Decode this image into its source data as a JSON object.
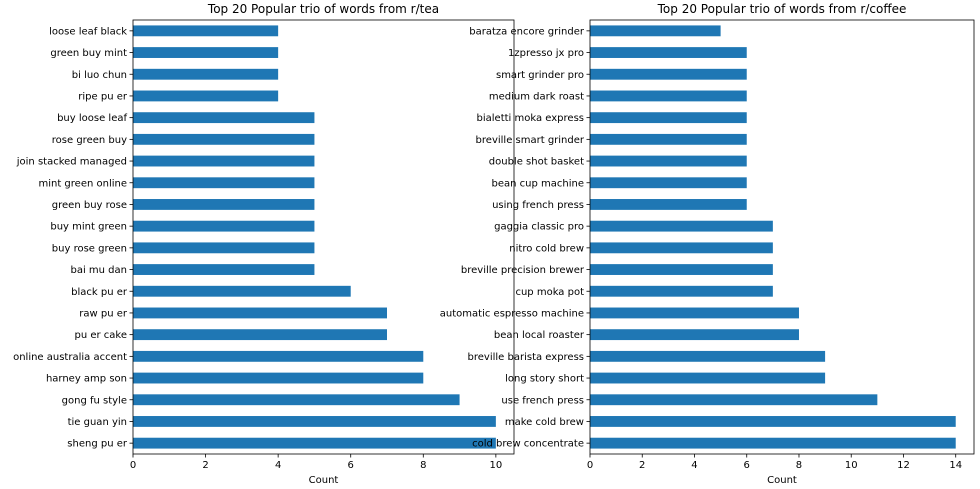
{
  "chart_data": [
    {
      "type": "bar",
      "orientation": "horizontal",
      "title": "Top 20 Popular trio of words from r/tea",
      "xlabel": "Count",
      "ylabel": "",
      "xlim": [
        0,
        10.5
      ],
      "xticks": [
        0,
        2,
        4,
        6,
        8,
        10
      ],
      "categories": [
        "loose leaf black",
        "green buy mint",
        "bi luo chun",
        "ripe pu er",
        "buy loose leaf",
        "rose green buy",
        "join stacked managed",
        "mint green online",
        "green buy rose",
        "buy mint green",
        "buy rose green",
        "bai mu dan",
        "black pu er",
        "raw pu er",
        "pu er cake",
        "online australia accent",
        "harney amp son",
        "gong fu style",
        "tie guan yin",
        "sheng pu er"
      ],
      "values": [
        4,
        4,
        4,
        4,
        5,
        5,
        5,
        5,
        5,
        5,
        5,
        5,
        6,
        7,
        7,
        8,
        8,
        9,
        10,
        10
      ],
      "color": "#1f77b4",
      "grid": false
    },
    {
      "type": "bar",
      "orientation": "horizontal",
      "title": "Top 20 Popular trio of words from r/coffee",
      "xlabel": "Count",
      "ylabel": "",
      "xlim": [
        0,
        14.7
      ],
      "xticks": [
        0,
        2,
        4,
        6,
        8,
        10,
        12,
        14
      ],
      "categories": [
        "baratza encore grinder",
        "1zpresso jx pro",
        "smart grinder pro",
        "medium dark roast",
        "bialetti moka express",
        "breville smart grinder",
        "double shot basket",
        "bean cup machine",
        "using french press",
        "gaggia classic pro",
        "nitro cold brew",
        "breville precision brewer",
        "cup moka pot",
        "automatic espresso machine",
        "bean local roaster",
        "breville barista express",
        "long story short",
        "use french press",
        "make cold brew",
        "cold brew concentrate"
      ],
      "values": [
        5,
        6,
        6,
        6,
        6,
        6,
        6,
        6,
        6,
        7,
        7,
        7,
        7,
        8,
        8,
        9,
        9,
        11,
        14,
        14
      ],
      "color": "#1f77b4",
      "grid": false
    }
  ]
}
